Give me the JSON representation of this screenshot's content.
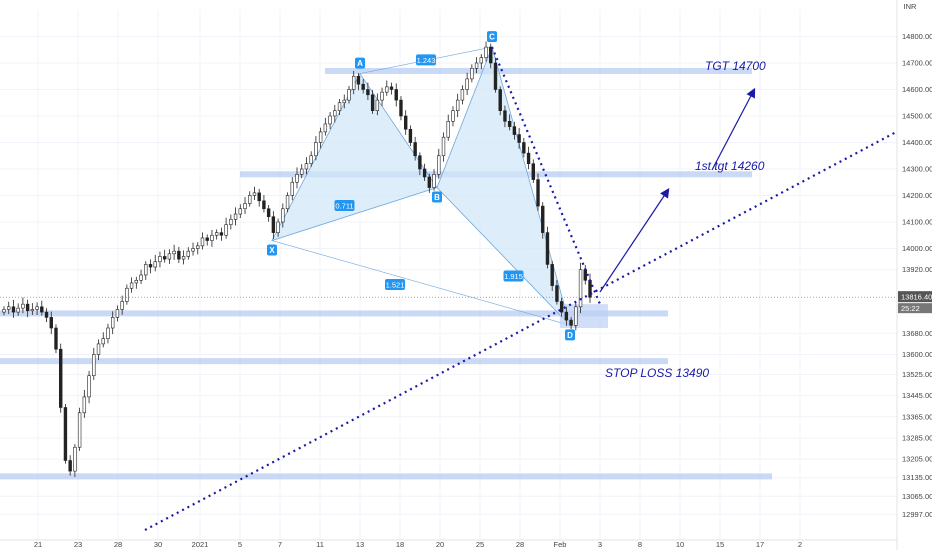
{
  "chart_data": {
    "type": "candlestick",
    "currency": "INR",
    "y_range": [
      12900,
      14900
    ],
    "y_ticks": [
      "14800.00",
      "14700.00",
      "14600.00",
      "14500.00",
      "14400.00",
      "14300.00",
      "14200.00",
      "14100.00",
      "14000.00",
      "13920.00",
      "13680.00",
      "13600.00",
      "13525.00",
      "13445.00",
      "13365.00",
      "13285.00",
      "13205.00",
      "13135.00",
      "13065.00",
      "12997.00"
    ],
    "x_ticks": [
      "21",
      "23",
      "28",
      "30",
      "2021",
      "5",
      "7",
      "11",
      "13",
      "18",
      "20",
      "25",
      "28",
      "Feb",
      "3",
      "8",
      "10",
      "15",
      "17",
      "2"
    ],
    "current_price": "13816.40",
    "countdown": "25:22",
    "pattern_points": [
      {
        "label": "X",
        "value": 14030
      },
      {
        "label": "A",
        "value": 14660
      },
      {
        "label": "B",
        "value": 14230
      },
      {
        "label": "C",
        "value": 14760
      },
      {
        "label": "D",
        "value": 13710
      }
    ],
    "ratios": [
      "1.243",
      "0.711",
      "1.915",
      "1.521"
    ],
    "zones": [
      {
        "price": 14670,
        "label": "TGT 14700"
      },
      {
        "price": 14280,
        "label": "1st tgt 14260"
      },
      {
        "price": 13755,
        "label": ""
      },
      {
        "price": 13575,
        "label": "STOP LOSS 13490"
      },
      {
        "price": 13140,
        "label": ""
      }
    ],
    "bars_start_index": 0,
    "closes": [
      13770,
      13780,
      13760,
      13775,
      13790,
      13765,
      13770,
      13780,
      13760,
      13740,
      13700,
      13620,
      13400,
      13200,
      13160,
      13250,
      13380,
      13440,
      13520,
      13600,
      13640,
      13660,
      13700,
      13740,
      13770,
      13800,
      13850,
      13870,
      13880,
      13900,
      13940,
      13930,
      13950,
      13970,
      13960,
      13980,
      13990,
      13960,
      13970,
      13990,
      14000,
      14010,
      14040,
      14030,
      14050,
      14060,
      14050,
      14090,
      14110,
      14130,
      14150,
      14170,
      14200,
      14210,
      14180,
      14150,
      14120,
      14060,
      14100,
      14150,
      14200,
      14250,
      14280,
      14300,
      14320,
      14350,
      14400,
      14440,
      14470,
      14500,
      14520,
      14550,
      14560,
      14600,
      14650,
      14620,
      14600,
      14580,
      14520,
      14560,
      14590,
      14610,
      14600,
      14560,
      14500,
      14450,
      14400,
      14350,
      14300,
      14270,
      14230,
      14280,
      14350,
      14420,
      14480,
      14520,
      14560,
      14600,
      14640,
      14680,
      14700,
      14720,
      14760,
      14700,
      14600,
      14520,
      14480,
      14460,
      14430,
      14400,
      14360,
      14320,
      14260,
      14160,
      14060,
      13940,
      13860,
      13800,
      13760,
      13730,
      13710,
      13780,
      13920,
      13880,
      13816
    ]
  }
}
